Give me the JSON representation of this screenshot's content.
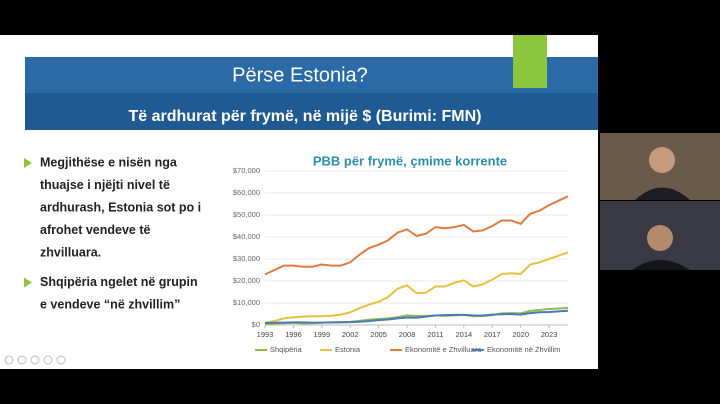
{
  "slide": {
    "title": "Përse Estonia?",
    "subtitle": "Të ardhurat për frymë, në mijë $ (Burimi: FMN)",
    "bullets": [
      [
        "Megjithëse e nisën nga",
        "thuajse i njëjti nivel të",
        "ardhurash, Estonia sot po i",
        "afrohet vendeve të",
        "zhvilluara."
      ],
      [
        "Shqipëria ngelet në grupin",
        "e vendeve “në zhvillim”"
      ]
    ]
  },
  "chart_data": {
    "type": "line",
    "title": "PBB për frymë, çmime korrente",
    "x": [
      1993,
      1994,
      1995,
      1996,
      1997,
      1998,
      1999,
      2000,
      2001,
      2002,
      2003,
      2004,
      2005,
      2006,
      2007,
      2008,
      2009,
      2010,
      2011,
      2012,
      2013,
      2014,
      2015,
      2016,
      2017,
      2018,
      2019,
      2020,
      2021,
      2022,
      2023,
      2024,
      2025
    ],
    "series": [
      {
        "name": "Shqipëria",
        "color": "#8dbb4c",
        "values": [
          400,
          700,
          800,
          1000,
          700,
          800,
          1100,
          1200,
          1300,
          1400,
          1900,
          2400,
          2700,
          3000,
          3600,
          4400,
          4100,
          4100,
          4400,
          4200,
          4400,
          4600,
          4000,
          4100,
          4500,
          5300,
          5400,
          5300,
          6400,
          6800,
          7300,
          7500,
          7800
        ]
      },
      {
        "name": "Estonia",
        "color": "#e6c040",
        "values": [
          1000,
          1800,
          3000,
          3500,
          3800,
          4000,
          4000,
          4200,
          4700,
          5800,
          7700,
          9300,
          10500,
          12700,
          16500,
          18000,
          14500,
          14700,
          17500,
          17500,
          19200,
          20300,
          17500,
          18500,
          20600,
          23200,
          23500,
          23200,
          27500,
          28500,
          30000,
          31500,
          33000
        ]
      },
      {
        "name": "Ekonomitë e Zhvilluara",
        "color": "#e07b3c",
        "values": [
          23000,
          25000,
          27000,
          27000,
          26500,
          26500,
          27500,
          27000,
          27000,
          28500,
          32000,
          35000,
          36500,
          38500,
          42000,
          43500,
          40500,
          41500,
          44500,
          44000,
          44500,
          45500,
          42500,
          43000,
          45000,
          47500,
          47500,
          46000,
          50500,
          52000,
          54500,
          56500,
          58500
        ]
      },
      {
        "name": "Ekonomitë në Zhvillim",
        "color": "#4a7ab8",
        "values": [
          900,
          1000,
          1100,
          1200,
          1200,
          1100,
          1100,
          1200,
          1200,
          1300,
          1500,
          1800,
          2200,
          2500,
          3000,
          3400,
          3300,
          3800,
          4300,
          4500,
          4600,
          4600,
          4400,
          4300,
          4700,
          4900,
          5000,
          4700,
          5400,
          5800,
          5900,
          6200,
          6500
        ]
      }
    ],
    "xlim": [
      1993,
      2025
    ],
    "xticks": [
      1993,
      1996,
      1999,
      2002,
      2005,
      2008,
      2011,
      2014,
      2017,
      2020,
      2023
    ],
    "ylim": [
      0,
      70000
    ],
    "yticks": [
      {
        "value": 0,
        "label": "$0"
      },
      {
        "value": 10000,
        "label": "$10,000"
      },
      {
        "value": 20000,
        "label": "$20,000"
      },
      {
        "value": 30000,
        "label": "$30,000"
      },
      {
        "value": 40000,
        "label": "$40,000"
      },
      {
        "value": 50000,
        "label": "$50,000"
      },
      {
        "value": 60000,
        "label": "$60,000"
      },
      {
        "value": 70000,
        "label": "$70,000"
      }
    ],
    "grid": true
  }
}
